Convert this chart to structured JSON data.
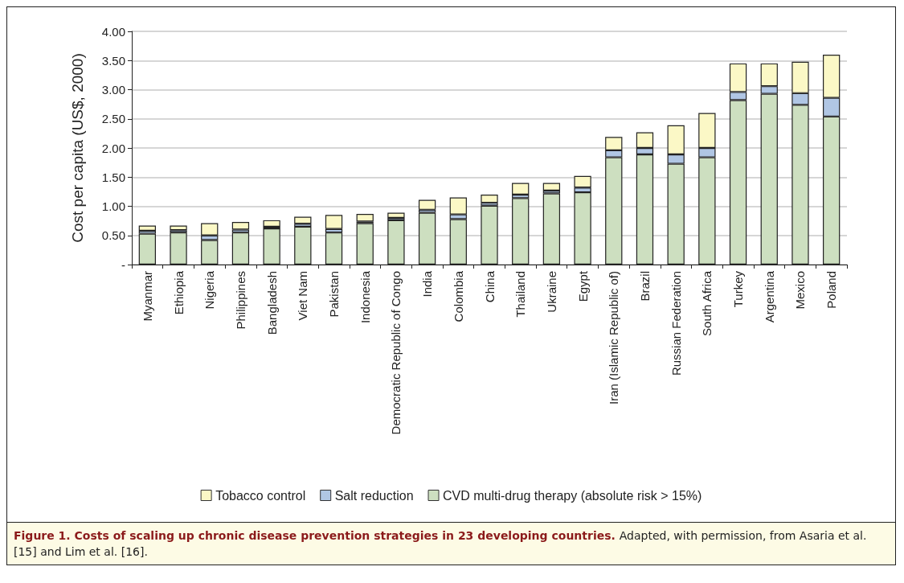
{
  "chart_data": {
    "type": "bar",
    "stacked": true,
    "ylabel": "Cost per capita (US$, 2000)",
    "categories": [
      "Myanmar",
      "Ethiopia",
      "Nigeria",
      "Philippines",
      "Bangladesh",
      "Viet Nam",
      "Pakistan",
      "Indonesia",
      "Democratic Republic of Congo",
      "India",
      "Colombia",
      "China",
      "Thailand",
      "Ukraine",
      "Egypt",
      "Iran (Islamic Republic of)",
      "Brazil",
      "Russian Federation",
      "South Africa",
      "Turkey",
      "Argentina",
      "Mexico",
      "Poland"
    ],
    "series": [
      {
        "name": "CVD multi-drug therapy (absolute risk > 15%)",
        "color": "#cddfc0",
        "values": [
          0.53,
          0.55,
          0.42,
          0.55,
          0.62,
          0.65,
          0.55,
          0.71,
          0.76,
          0.89,
          0.78,
          1.01,
          1.14,
          1.22,
          1.24,
          1.84,
          1.89,
          1.73,
          1.84,
          2.82,
          2.93,
          2.74,
          2.54
        ]
      },
      {
        "name": "Salt reduction",
        "color": "#b0c6e4",
        "values": [
          0.05,
          0.04,
          0.08,
          0.05,
          0.03,
          0.05,
          0.06,
          0.03,
          0.04,
          0.05,
          0.08,
          0.05,
          0.06,
          0.05,
          0.08,
          0.12,
          0.11,
          0.16,
          0.16,
          0.14,
          0.13,
          0.2,
          0.32
        ]
      },
      {
        "name": "Tobacco control",
        "color": "#fbf8c6",
        "values": [
          0.09,
          0.08,
          0.21,
          0.13,
          0.11,
          0.12,
          0.24,
          0.13,
          0.09,
          0.17,
          0.29,
          0.14,
          0.2,
          0.13,
          0.2,
          0.23,
          0.27,
          0.5,
          0.6,
          0.49,
          0.39,
          0.54,
          0.74
        ]
      }
    ],
    "ylim": [
      0,
      4
    ],
    "yticks": [
      {
        "value": 0,
        "label": "-"
      },
      {
        "value": 0.5,
        "label": "0.50"
      },
      {
        "value": 1,
        "label": "1.00"
      },
      {
        "value": 1.5,
        "label": "1.50"
      },
      {
        "value": 2,
        "label": "2.00"
      },
      {
        "value": 2.5,
        "label": "2.50"
      },
      {
        "value": 3,
        "label": "3.00"
      },
      {
        "value": 3.5,
        "label": "3.50"
      },
      {
        "value": 4,
        "label": "4.00"
      }
    ],
    "grid": "y",
    "legend": "bottom",
    "annotations": [
      "Figure 1. Costs of scaling up chronic disease prevention strategies in 23 developing countries.",
      "Adapted, with permission, from Asaria et al. [15] and Lim et al. [16]."
    ]
  }
}
